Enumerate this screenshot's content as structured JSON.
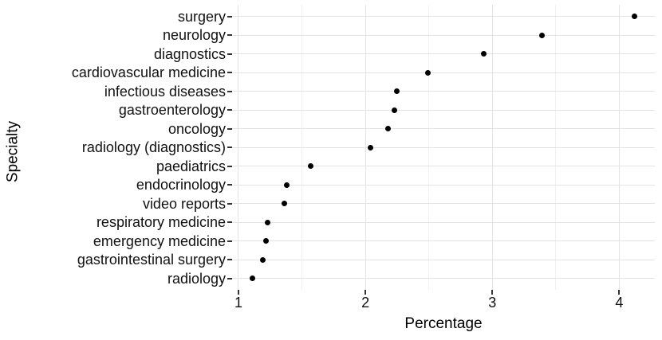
{
  "chart_data": {
    "type": "scatter",
    "variant": "horizontal-dot-plot",
    "title": "",
    "xlabel": "Percentage",
    "ylabel": "Specialty",
    "categories": [
      "surgery",
      "neurology",
      "diagnostics",
      "cardiovascular medicine",
      "infectious diseases",
      "gastroenterology",
      "oncology",
      "radiology (diagnostics)",
      "paediatrics",
      "endocrinology",
      "video reports",
      "respiratory medicine",
      "emergency medicine",
      "gastrointestinal surgery",
      "radiology"
    ],
    "values": [
      4.12,
      3.39,
      2.93,
      2.49,
      2.25,
      2.23,
      2.18,
      2.04,
      1.57,
      1.38,
      1.36,
      1.23,
      1.22,
      1.19,
      1.11
    ],
    "x_ticks": [
      1,
      2,
      3,
      4
    ],
    "x_minor_ticks": [
      1.5,
      2.5,
      3.5
    ],
    "xlim": [
      0.95,
      4.28
    ],
    "grid": true,
    "legend": "none",
    "point_color": "#000000",
    "grid_major_color": "#e3e3e3",
    "grid_minor_color": "#f1f1f1",
    "tick_color": "#333333",
    "text_color": "#111111",
    "background": "#ffffff"
  }
}
